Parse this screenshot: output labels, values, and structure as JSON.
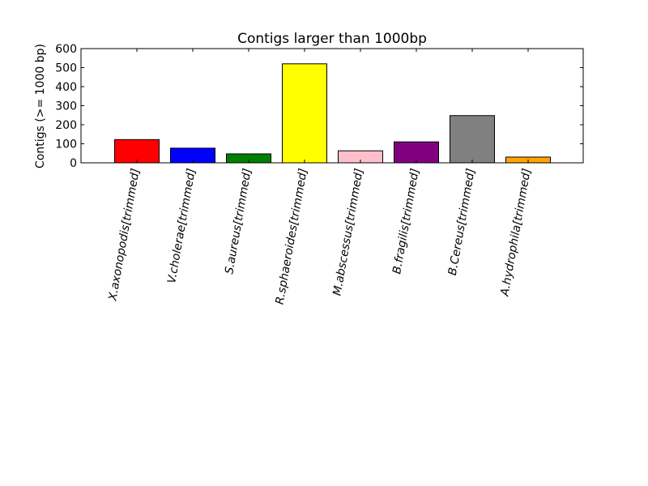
{
  "chart_data": {
    "type": "bar",
    "title": "Contigs larger than 1000bp",
    "xlabel": "",
    "ylabel": "Contigs (>= 1000 bp)",
    "ylim": [
      0,
      600
    ],
    "yticks": [
      0,
      100,
      200,
      300,
      400,
      500,
      600
    ],
    "yticks_labels": [
      "0",
      "100",
      "200",
      "300",
      "400",
      "500",
      "600"
    ],
    "categories": [
      "X.axonopodis[trimmed]",
      "V.cholerae[trimmed]",
      "S.aureus[trimmed]",
      "R.sphaeroides[trimmed]",
      "M.abscessus[trimmed]",
      "B.fragilis[trimmed]",
      "B.Cereus[trimmed]",
      "A.hydrophila[trimmed]"
    ],
    "values": [
      122,
      77,
      47,
      520,
      63,
      110,
      248,
      30
    ],
    "colors": [
      "#ff0000",
      "#0000ff",
      "#008000",
      "#ffff00",
      "#ffc0cb",
      "#800080",
      "#808080",
      "#ffa500"
    ],
    "edge_color": "#000000",
    "grid": false,
    "legend": "none",
    "x_tick_rotation": "80"
  }
}
